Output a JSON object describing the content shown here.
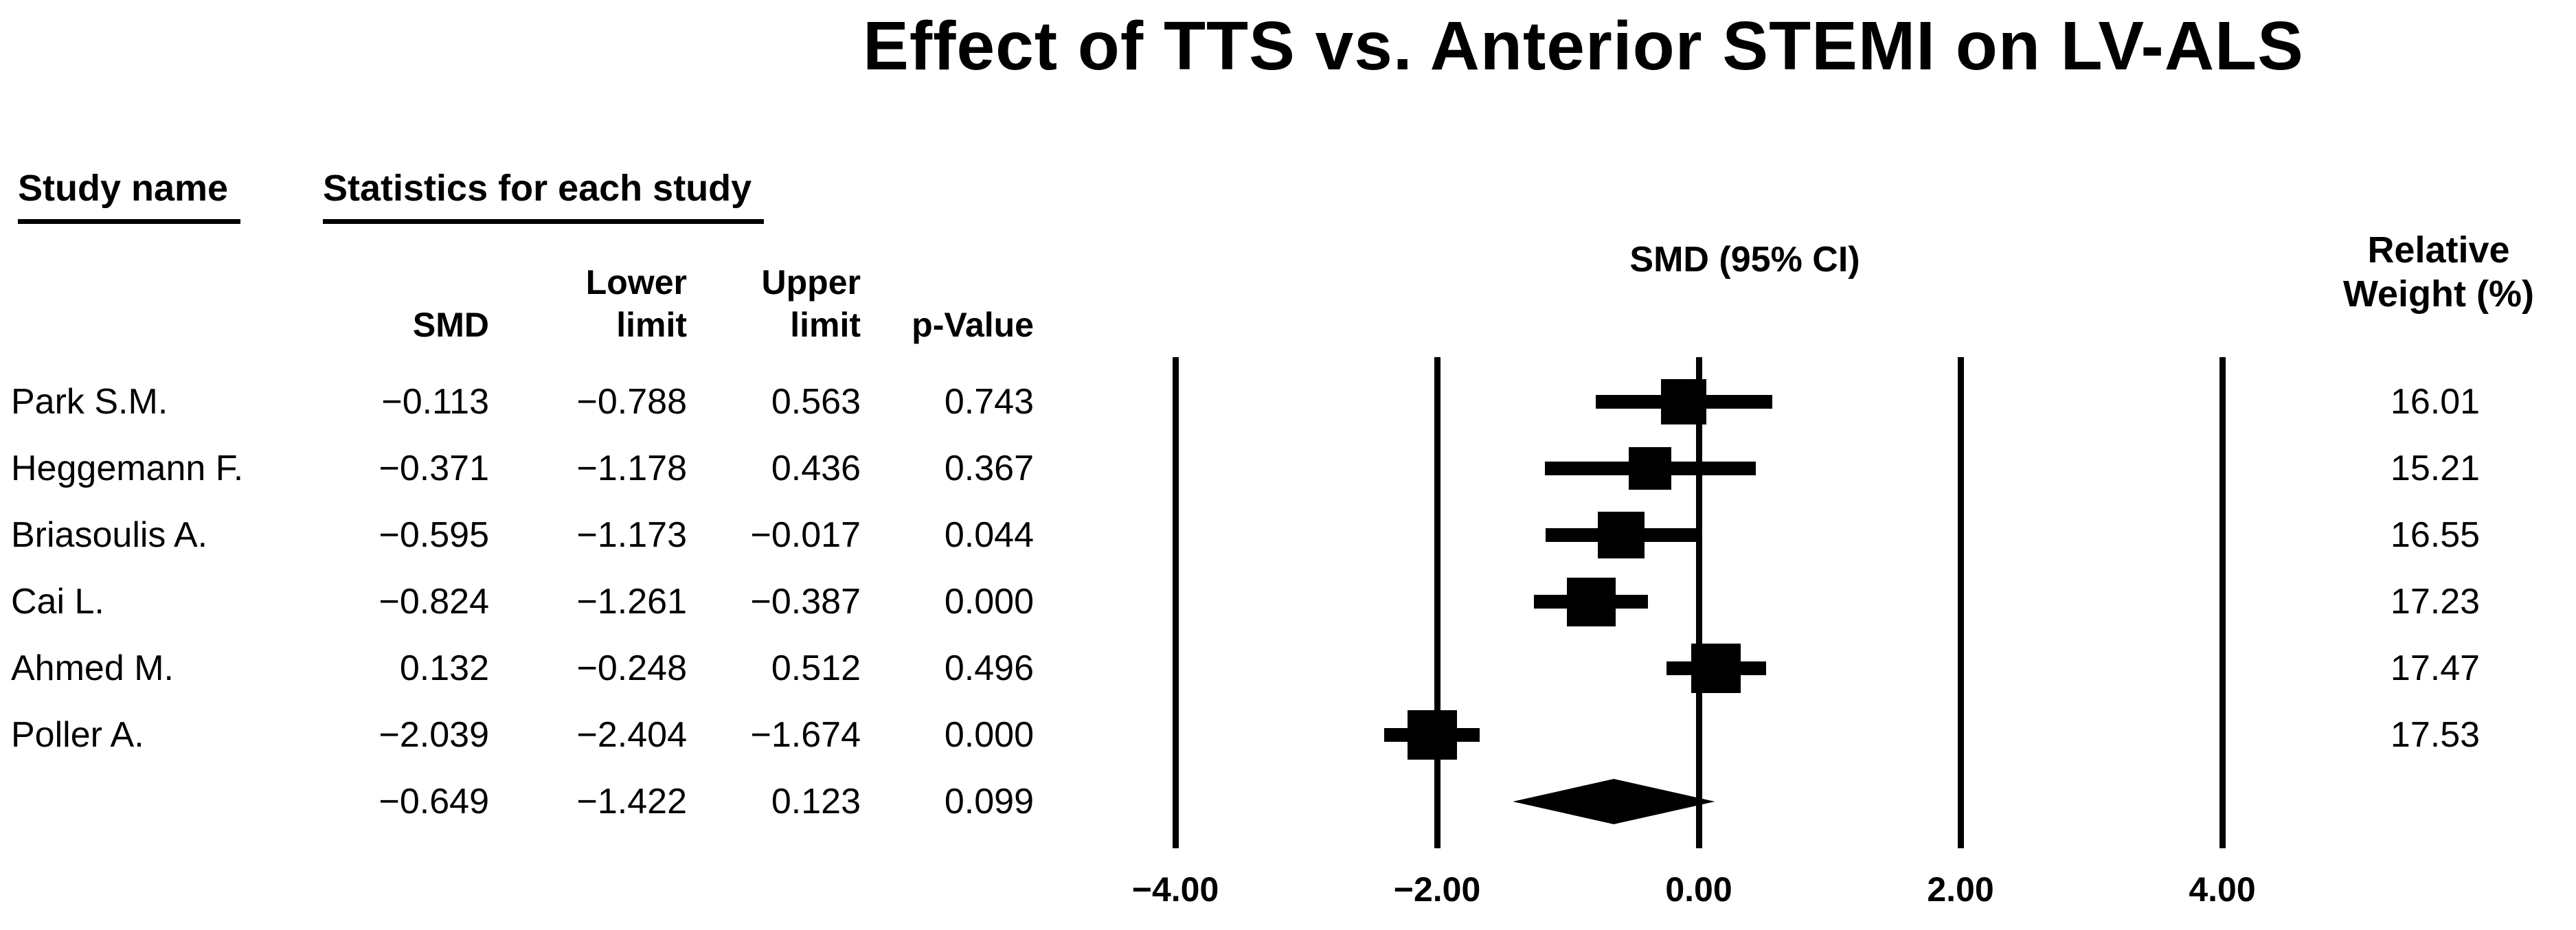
{
  "figure": {
    "title": "Effect of TTS vs. Anterior STEMI on LV-ALS"
  },
  "table": {
    "study_header": "Study name",
    "stats_header": "Statistics for each study",
    "columns": {
      "smd": "SMD",
      "lower_line1": "Lower",
      "lower_line2": "limit",
      "upper_line1": "Upper",
      "upper_line2": "limit",
      "p": "p-Value"
    },
    "rows": [
      {
        "study": "Park S.M.",
        "smd": "−0.113",
        "lower": "−0.788",
        "upper": "0.563",
        "p": "0.743"
      },
      {
        "study": "Heggemann F.",
        "smd": "−0.371",
        "lower": "−1.178",
        "upper": "0.436",
        "p": "0.367"
      },
      {
        "study": "Briasoulis A.",
        "smd": "−0.595",
        "lower": "−1.173",
        "upper": "−0.017",
        "p": "0.044"
      },
      {
        "study": "Cai L.",
        "smd": "−0.824",
        "lower": "−1.261",
        "upper": "−0.387",
        "p": "0.000"
      },
      {
        "study": "Ahmed M.",
        "smd": "0.132",
        "lower": "−0.248",
        "upper": "0.512",
        "p": "0.496"
      },
      {
        "study": "Poller A.",
        "smd": "−2.039",
        "lower": "−2.404",
        "upper": "−1.674",
        "p": "0.000"
      }
    ],
    "overall_row": {
      "smd": "−0.649",
      "lower": "−1.422",
      "upper": "0.123",
      "p": "0.099"
    }
  },
  "plot": {
    "header": "SMD (95% CI)",
    "tick_labels": [
      "−4.00",
      "−2.00",
      "0.00",
      "2.00",
      "4.00"
    ]
  },
  "weights": {
    "header_line1": "Relative",
    "header_line2": "Weight (%)",
    "values": [
      "16.01",
      "15.21",
      "16.55",
      "17.23",
      "17.47",
      "17.53"
    ]
  },
  "colors": {
    "ink": "#000000",
    "background": "#ffffff"
  },
  "chart_data": {
    "type": "forest",
    "title": "Effect of TTS vs. Anterior STEMI on LV-ALS",
    "effect_measure_label": "SMD (95% CI)",
    "columns": [
      "SMD",
      "Lower limit",
      "Upper limit",
      "p-Value",
      "Relative Weight (%)"
    ],
    "x_axis": {
      "ticks": [
        -4,
        -2,
        0,
        2,
        4
      ],
      "tick_labels": [
        "−4.00",
        "−2.00",
        "0.00",
        "2.00",
        "4.00"
      ],
      "gridlines_at_ticks": true
    },
    "studies": [
      {
        "name": "Park S.M.",
        "smd": -0.113,
        "ci_lower": -0.788,
        "ci_upper": 0.563,
        "p_value": 0.743,
        "relative_weight_pct": 16.01
      },
      {
        "name": "Heggemann F.",
        "smd": -0.371,
        "ci_lower": -1.178,
        "ci_upper": 0.436,
        "p_value": 0.367,
        "relative_weight_pct": 15.21
      },
      {
        "name": "Briasoulis A.",
        "smd": -0.595,
        "ci_lower": -1.173,
        "ci_upper": -0.017,
        "p_value": 0.044,
        "relative_weight_pct": 16.55
      },
      {
        "name": "Cai L.",
        "smd": -0.824,
        "ci_lower": -1.261,
        "ci_upper": -0.387,
        "p_value": 0.0,
        "relative_weight_pct": 17.23
      },
      {
        "name": "Ahmed M.",
        "smd": 0.132,
        "ci_lower": -0.248,
        "ci_upper": 0.512,
        "p_value": 0.496,
        "relative_weight_pct": 17.47
      },
      {
        "name": "Poller A.",
        "smd": -2.039,
        "ci_lower": -2.404,
        "ci_upper": -1.674,
        "p_value": 0.0,
        "relative_weight_pct": 17.53
      }
    ],
    "overall": {
      "smd": -0.649,
      "ci_lower": -1.422,
      "ci_upper": 0.123,
      "p_value": 0.099,
      "marker": "diamond"
    },
    "marker": "square-sized-by-weight",
    "legend": false,
    "grid": "vertical-only"
  }
}
